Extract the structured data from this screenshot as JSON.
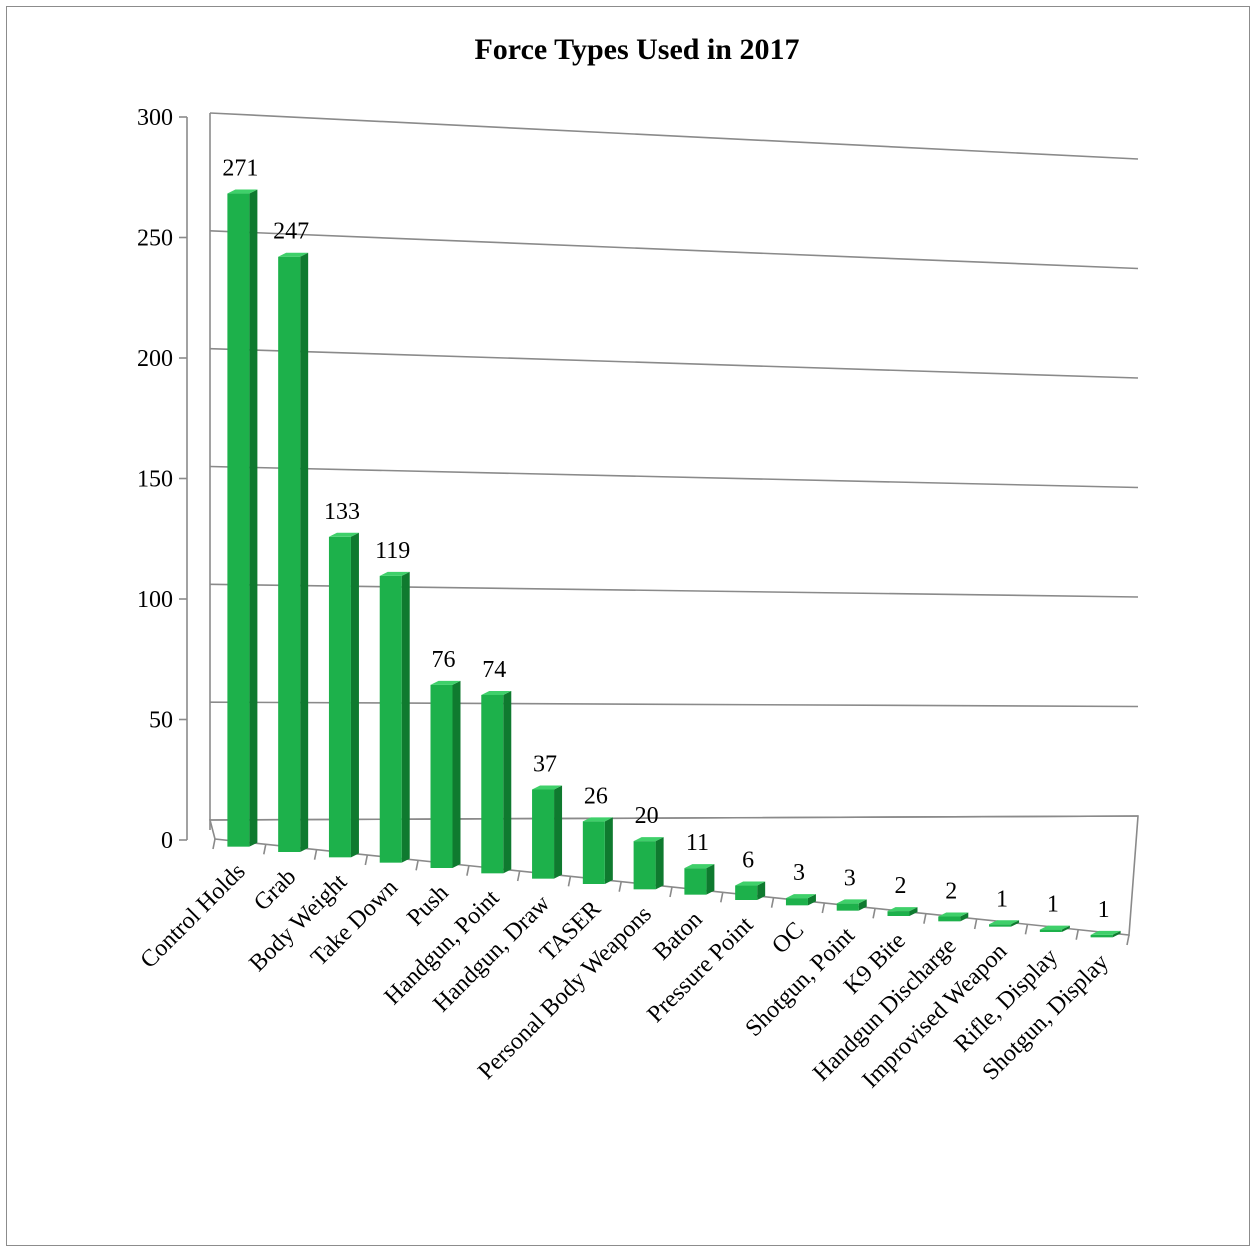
{
  "chart_data": {
    "type": "bar",
    "title": "Force Types Used in 2017",
    "xlabel": "",
    "ylabel": "",
    "ylim": [
      0,
      300
    ],
    "yticks": [
      0,
      50,
      100,
      150,
      200,
      250,
      300
    ],
    "grid": true,
    "legend": "none",
    "categories": [
      "Control Holds",
      "Grab",
      "Body Weight",
      "Take Down",
      "Push",
      "Handgun, Point",
      "Handgun, Draw",
      "TASER",
      "Personal Body Weapons",
      "Baton",
      "Pressure Point",
      "OC",
      "Shotgun, Point",
      "K9 Bite",
      "Handgun Discharge",
      "Improvised Weapon",
      "Rifle, Display",
      "Shotgun, Display"
    ],
    "values": [
      271,
      247,
      133,
      119,
      76,
      74,
      37,
      26,
      20,
      11,
      6,
      3,
      3,
      2,
      2,
      1,
      1,
      1
    ],
    "colors": {
      "bar_front": "#1db14b",
      "bar_side": "#0f7a2f",
      "bar_top": "#3fd06a",
      "grid": "#8a8a8a",
      "axis": "#8a8a8a"
    }
  }
}
